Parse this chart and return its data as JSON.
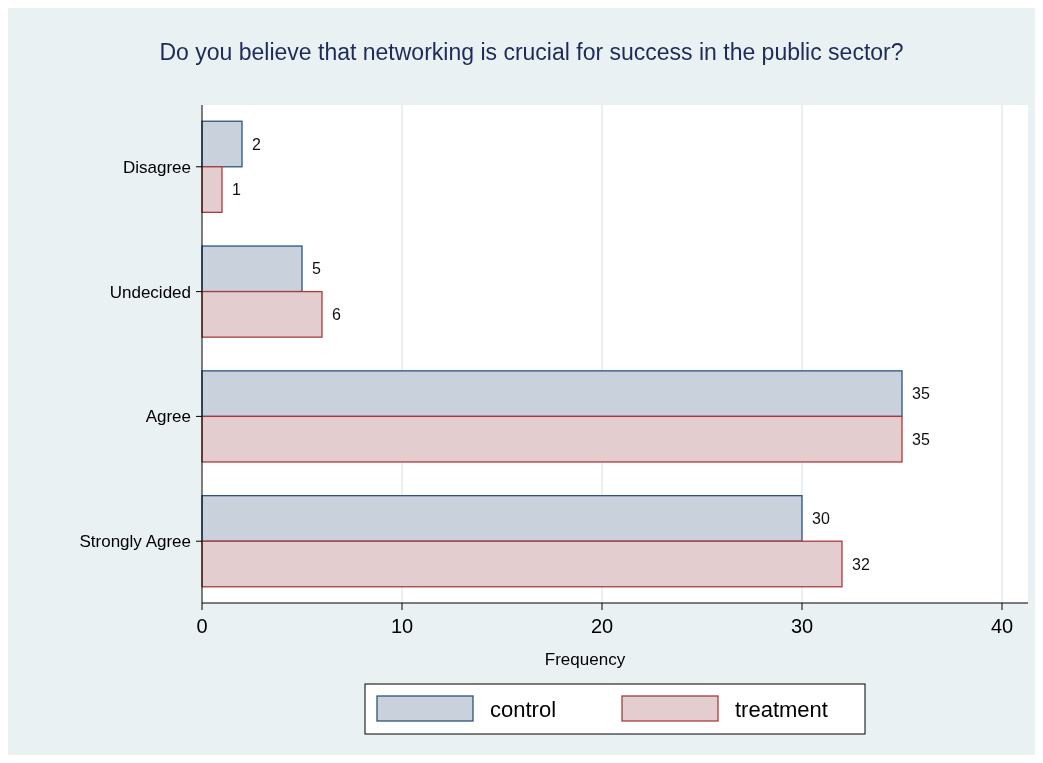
{
  "chart_data": {
    "type": "bar",
    "orientation": "horizontal",
    "title": "Do you believe that networking is crucial for success in the public sector?",
    "xlabel": "Frequency",
    "categories": [
      "Disagree",
      "Undecided",
      "Agree",
      "Strongly Agree"
    ],
    "series": [
      {
        "name": "control",
        "color": "#c8d1dc",
        "values": [
          2,
          5,
          35,
          30
        ]
      },
      {
        "name": "treatment",
        "color": "#e4cdcf",
        "values": [
          1,
          6,
          35,
          32
        ]
      }
    ],
    "xlim": [
      0,
      41.3
    ],
    "xticks": [
      0,
      10,
      20,
      30,
      40
    ],
    "grid": "x",
    "legend": "bottom",
    "data_labels": true
  }
}
